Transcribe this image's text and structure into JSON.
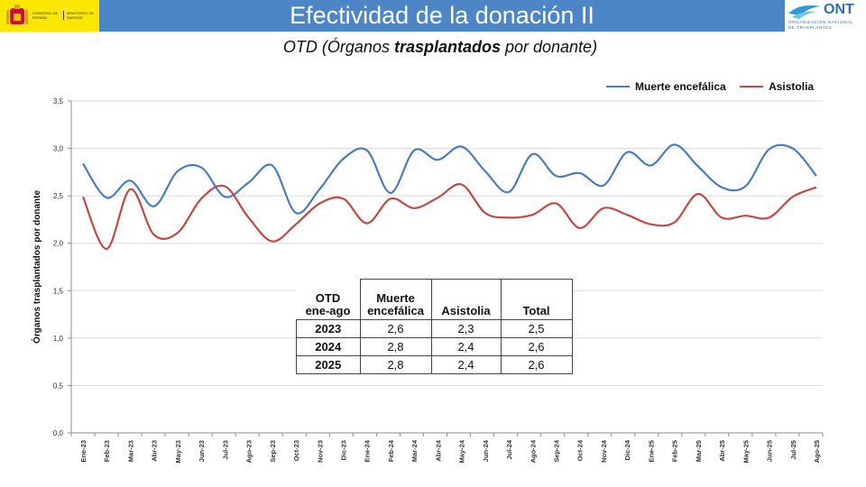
{
  "header": {
    "title": "Efectividad de la donación II",
    "gov_text_1": "GOBIERNO DE ESPAÑA",
    "gov_text_2": "MINISTERIO DE SANIDAD",
    "logo_text": "ONT",
    "logo_sub_1": "ORGANIZACIÓN NACIONAL",
    "logo_sub_2": "DE TRASPLANTES"
  },
  "subtitle": {
    "part1": "OTD (Órganos ",
    "bold": "trasplantados",
    "part2": " por donante)"
  },
  "colors": {
    "header_band": "#4d86c7",
    "gov_band": "#fbe700",
    "series_1": "#4a7ebb",
    "series_2": "#be4b48",
    "grid": "#d9d9d9"
  },
  "chart_data": {
    "type": "line",
    "ylabel": "Órganos trasplantados por donante",
    "xlabel": "",
    "ylim": [
      0,
      3.5
    ],
    "yticks": [
      "0,0",
      "0,5",
      "1,0",
      "1,5",
      "2,0",
      "2,5",
      "3,0",
      "3,5"
    ],
    "grid": "horizontal",
    "legend_position": "top-right",
    "categories": [
      "Ene-23",
      "Feb-23",
      "Mar-23",
      "Abr-23",
      "May-23",
      "Jun-23",
      "Jul-23",
      "Ago-23",
      "Sep-23",
      "Oct-23",
      "Nov-23",
      "Dic-23",
      "Ene-24",
      "Feb-24",
      "Mar-24",
      "Abr-24",
      "May-24",
      "Jun-24",
      "Jul-24",
      "Ago-24",
      "Sep-24",
      "Oct-24",
      "Nov-24",
      "Dic-24",
      "Ene-25",
      "Feb-25",
      "Mar-25",
      "Abr-25",
      "May-25",
      "Jun-25",
      "Jul-25",
      "Ago-25"
    ],
    "series": [
      {
        "name": "Muerte encefálica",
        "values": [
          2.84,
          2.48,
          2.66,
          2.39,
          2.76,
          2.8,
          2.49,
          2.64,
          2.82,
          2.32,
          2.57,
          2.89,
          2.98,
          2.53,
          2.98,
          2.88,
          3.02,
          2.76,
          2.54,
          2.94,
          2.71,
          2.74,
          2.61,
          2.96,
          2.82,
          3.04,
          2.81,
          2.59,
          2.6,
          2.99,
          3.0,
          2.71
        ]
      },
      {
        "name": "Asistolia",
        "values": [
          2.49,
          1.94,
          2.57,
          2.09,
          2.11,
          2.47,
          2.6,
          2.27,
          2.02,
          2.2,
          2.42,
          2.47,
          2.21,
          2.47,
          2.37,
          2.48,
          2.62,
          2.32,
          2.27,
          2.3,
          2.42,
          2.16,
          2.37,
          2.3,
          2.2,
          2.22,
          2.52,
          2.27,
          2.29,
          2.27,
          2.49,
          2.59
        ]
      }
    ],
    "table": {
      "header": {
        "c1_line1": "OTD",
        "c1_line2": "ene-ago",
        "c2_line1": "Muerte",
        "c2_line2": "encefálica",
        "c3": "Asistolia",
        "c4": "Total"
      },
      "rows": [
        {
          "year": "2023",
          "me": "2,6",
          "asis": "2,3",
          "total": "2,5"
        },
        {
          "year": "2024",
          "me": "2,8",
          "asis": "2,4",
          "total": "2,6"
        },
        {
          "year": "2025",
          "me": "2,8",
          "asis": "2,4",
          "total": "2,6"
        }
      ]
    }
  }
}
